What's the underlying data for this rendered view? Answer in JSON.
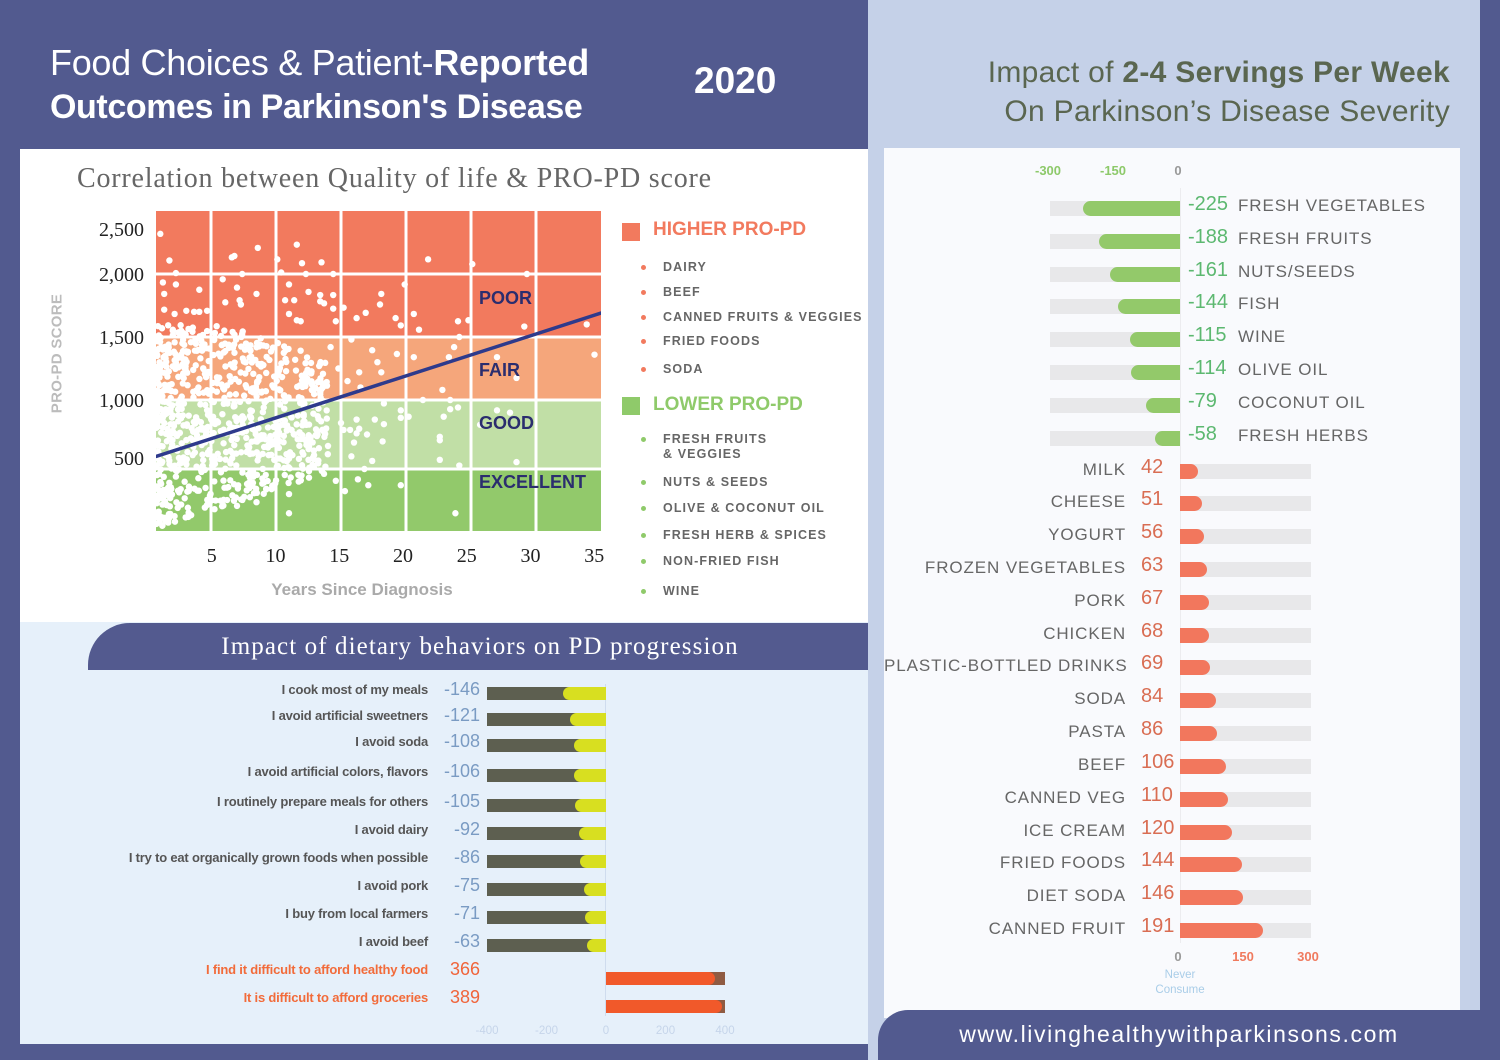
{
  "header": {
    "title_light": "Food Choices & Patient-",
    "title_bold": "Reported",
    "title_line2": "Outcomes in Parkinson's Disease",
    "year": "2020"
  },
  "right_header": {
    "line1_light": "Impact of ",
    "line1_bold": "2-4 Servings Per Week",
    "line2": "On Parkinson’s Disease Severity"
  },
  "colors": {
    "brand_purple": "#525a8f",
    "poor": "#f27a5e",
    "fair": "#f5a67b",
    "good": "#c1dfa6",
    "excellent": "#92c96b",
    "trendline": "#2e3a8c",
    "higher": "#f27a5e",
    "lower": "#8fca6a",
    "diet_negative_track": "#5d5f50",
    "diet_negative_fill": "#d8df20",
    "diet_positive_track": "#8f5b42",
    "diet_positive_fill": "#f1592a",
    "serv_negative_fill": "#93c96a",
    "serv_positive_fill": "#f2775d",
    "serv_track": "#e8e8ea"
  },
  "correlation_legend": {
    "higher": {
      "title": "HIGHER PRO-PD",
      "items": [
        "DAIRY",
        "BEEF",
        "CANNED FRUITS & VEGGIES",
        "FRIED FOODS",
        "SODA"
      ]
    },
    "lower": {
      "title": "LOWER PRO-PD",
      "items": [
        "FRESH FRUITS\n& VEGGIES",
        "NUTS & SEEDS",
        "OLIVE & COCONUT OIL",
        "FRESH HERB & SPICES",
        "NON-FRIED FISH",
        "WINE"
      ]
    }
  },
  "chart_data": [
    {
      "type": "scatter",
      "title": "Correlation between Quality of life & PRO-PD score",
      "xlabel": "Years Since Diagnosis",
      "ylabel": "PRO-PD SCORE",
      "xlim": [
        0.8,
        35.5
      ],
      "ylim": [
        0,
        2750
      ],
      "xticks": [
        {
          "value": 5,
          "label": "5"
        },
        {
          "value": 10,
          "label": "10"
        },
        {
          "value": 15,
          "label": "15"
        },
        {
          "value": 20,
          "label": "20"
        },
        {
          "value": 25,
          "label": "25"
        },
        {
          "value": 30,
          "label": "30"
        },
        {
          "value": 35,
          "label": "35"
        }
      ],
      "yticks": [
        {
          "value": 500,
          "label": "500"
        },
        {
          "value": 1000,
          "label": "1,000"
        },
        {
          "value": 1500,
          "label": "1,500"
        },
        {
          "value": 2000,
          "label": "2,000"
        },
        {
          "value": 2500,
          "label": "2,500"
        }
      ],
      "grid": true,
      "xgrid": [
        5,
        10,
        15,
        20,
        25,
        30
      ],
      "ygrid": [
        400,
        1000,
        1500,
        2000
      ],
      "bands": [
        {
          "name": "POOR",
          "from": 1500,
          "to": 2750,
          "color": "#f27a5e"
        },
        {
          "name": "FAIR",
          "from": 1000,
          "to": 1500,
          "color": "#f5a67b"
        },
        {
          "name": "GOOD",
          "from": 400,
          "to": 1000,
          "color": "#c1dfa6"
        },
        {
          "name": "EXCELLENT",
          "from": 0,
          "to": 400,
          "color": "#92c96b"
        }
      ],
      "trendline": {
        "x": [
          0.8,
          35.0
        ],
        "y": [
          510,
          1690
        ]
      },
      "dense_cluster": {
        "count": 850,
        "x_range": [
          0.8,
          14
        ],
        "y_range": [
          0,
          1600
        ]
      },
      "points": [
        [
          1.1,
          2446
        ],
        [
          1.8,
          2150
        ],
        [
          2.3,
          2010
        ],
        [
          8.6,
          2290
        ],
        [
          11.6,
          2326
        ],
        [
          6.6,
          2185
        ],
        [
          6.8,
          2200
        ],
        [
          10.1,
          2163
        ],
        [
          12.0,
          2120
        ],
        [
          13.5,
          2130
        ],
        [
          21.7,
          2163
        ],
        [
          25.1,
          2110
        ],
        [
          1.3,
          1933
        ],
        [
          2.3,
          1917
        ],
        [
          4.1,
          1875
        ],
        [
          5.9,
          1958
        ],
        [
          7.4,
          2000
        ],
        [
          10.4,
          2017
        ],
        [
          12.3,
          2000
        ],
        [
          14.4,
          2000
        ],
        [
          7.0,
          1892
        ],
        [
          8.5,
          1842
        ],
        [
          11.0,
          1917
        ],
        [
          12.5,
          1858
        ],
        [
          13.4,
          1833
        ],
        [
          14.4,
          1833
        ],
        [
          18.1,
          1842
        ],
        [
          19.9,
          1917
        ],
        [
          29.3,
          2000
        ],
        [
          1.4,
          1842
        ],
        [
          1.4,
          1717
        ],
        [
          2.2,
          1683
        ],
        [
          3.1,
          1708
        ],
        [
          3.7,
          1700
        ],
        [
          4.1,
          1700
        ],
        [
          4.7,
          1708
        ],
        [
          6.1,
          1775
        ],
        [
          7.2,
          1792
        ],
        [
          7.3,
          1758
        ],
        [
          10.7,
          1792
        ],
        [
          11.4,
          1792
        ],
        [
          13.4,
          1783
        ],
        [
          13.7,
          1767
        ],
        [
          14.4,
          1725
        ],
        [
          11.0,
          1683
        ],
        [
          11.6,
          1633
        ],
        [
          11.9,
          1625
        ],
        [
          14.6,
          1625
        ],
        [
          15.2,
          1733
        ],
        [
          16.2,
          1650
        ],
        [
          16.9,
          1692
        ],
        [
          18.0,
          1758
        ],
        [
          19.2,
          1650
        ],
        [
          19.6,
          1592
        ],
        [
          20.6,
          1683
        ],
        [
          21.0,
          1558
        ],
        [
          24.0,
          1625
        ],
        [
          24.8,
          1633
        ],
        [
          29.1,
          1583
        ],
        [
          33.9,
          1600
        ],
        [
          24.1,
          1500
        ],
        [
          34.5,
          1360
        ],
        [
          28.5,
          1175
        ],
        [
          27.0,
          1340
        ],
        [
          23.7,
          1420
        ],
        [
          23.3,
          1340
        ],
        [
          20.6,
          1340
        ],
        [
          19.3,
          1365
        ],
        [
          18.1,
          1220
        ],
        [
          17.4,
          1395
        ],
        [
          16.4,
          1220
        ],
        [
          22.8,
          1080
        ],
        [
          23.4,
          1000
        ],
        [
          21.3,
          1000
        ],
        [
          24.0,
          935
        ],
        [
          23.4,
          920
        ],
        [
          22.9,
          855
        ],
        [
          27.0,
          910
        ],
        [
          28.0,
          890
        ],
        [
          25.7,
          785
        ],
        [
          22.6,
          680
        ],
        [
          22.6,
          650
        ],
        [
          22.6,
          480
        ],
        [
          24.1,
          430
        ],
        [
          28.5,
          460
        ],
        [
          23.8,
          100
        ],
        [
          19.6,
          910
        ],
        [
          19.6,
          845
        ],
        [
          20.2,
          855
        ],
        [
          18.3,
          790
        ],
        [
          17.6,
          830
        ],
        [
          18.2,
          640
        ],
        [
          17.4,
          470
        ],
        [
          17.0,
          700
        ],
        [
          16.2,
          710
        ],
        [
          16.0,
          630
        ],
        [
          15.8,
          510
        ],
        [
          16.3,
          330
        ],
        [
          17.1,
          290
        ],
        [
          19.6,
          290
        ],
        [
          14.6,
          320
        ],
        [
          15.3,
          250
        ],
        [
          16.8,
          400
        ],
        [
          11.0,
          230
        ],
        [
          11.0,
          100
        ],
        [
          8.5,
          175
        ],
        [
          7.0,
          150
        ],
        [
          15.0,
          800
        ],
        [
          15.2,
          740
        ],
        [
          15.7,
          740
        ],
        [
          16.2,
          830
        ],
        [
          16.4,
          750
        ],
        [
          18.3,
          970
        ],
        [
          14.8,
          1250
        ],
        [
          15.5,
          1150
        ],
        [
          16.5,
          1100
        ],
        [
          17.8,
          1300
        ],
        [
          14.2,
          1420
        ],
        [
          15.8,
          1480
        ],
        [
          13.6,
          1100
        ],
        [
          12.8,
          950
        ],
        [
          13.2,
          700
        ],
        [
          14.0,
          600
        ],
        [
          12.5,
          480
        ],
        [
          13.8,
          420
        ]
      ]
    },
    {
      "type": "bar",
      "orientation": "horizontal",
      "title": "Impact of dietary behaviors on PD progression",
      "categories": [
        "I cook most of my meals",
        "I avoid artificial sweetners",
        "I avoid soda",
        "I avoid artificial colors, flavors",
        "I routinely prepare meals for others",
        "I avoid dairy",
        "I try to eat organically grown foods when possible",
        "I avoid pork",
        "I buy from local farmers",
        "I avoid beef",
        "I find it difficult to afford healthy food",
        "It is difficult to afford groceries"
      ],
      "values": [
        -146,
        -121,
        -108,
        -106,
        -105,
        -92,
        -86,
        -75,
        -71,
        -63,
        366,
        389
      ],
      "value_labels": [
        "-146",
        "-121",
        "-108",
        "-106",
        "-105",
        "-92",
        "-86",
        "-75",
        "-71",
        "-63",
        "366",
        "389"
      ],
      "xlim": [
        -400,
        400
      ],
      "xticks": [
        {
          "value": -400,
          "label": "-400"
        },
        {
          "value": -200,
          "label": "-200"
        },
        {
          "value": 0,
          "label": "0"
        },
        {
          "value": 200,
          "label": "200"
        },
        {
          "value": 400,
          "label": "400"
        }
      ]
    },
    {
      "type": "bar",
      "orientation": "horizontal",
      "title": "Impact of 2-4 Servings Per Week On Parkinson’s Disease Severity",
      "categories": [
        "FRESH VEGETABLES",
        "FRESH FRUITS",
        "NUTS/SEEDS",
        "FISH",
        "WINE",
        "OLIVE OIL",
        "COCONUT OIL",
        "FRESH HERBS",
        "MILK",
        "CHEESE",
        "YOGURT",
        "FROZEN VEGETABLES",
        "PORK",
        "CHICKEN",
        "PLASTIC-BOTTLED DRINKS",
        "SODA",
        "PASTA",
        "BEEF",
        "CANNED VEG",
        "ICE CREAM",
        "FRIED FOODS",
        "DIET SODA",
        "CANNED FRUIT"
      ],
      "values": [
        -225,
        -188,
        -161,
        -144,
        -115,
        -114,
        -79,
        -58,
        42,
        51,
        56,
        63,
        67,
        68,
        69,
        84,
        86,
        106,
        110,
        120,
        144,
        146,
        191
      ],
      "value_labels": [
        "-225",
        "-188",
        "-161",
        "-144",
        "-115",
        "-114",
        "-79",
        "-58",
        "42",
        "51",
        "56",
        "63",
        "67",
        "68",
        "69",
        "84",
        "86",
        "106",
        "110",
        "120",
        "144",
        "146",
        "191"
      ],
      "xlim": [
        -300,
        300
      ],
      "top_ticks": [
        {
          "value": -300,
          "label": "-300"
        },
        {
          "value": -150,
          "label": "-150"
        },
        {
          "value": 0,
          "label": "0"
        }
      ],
      "bottom_ticks": [
        {
          "value": 0,
          "label": "0"
        },
        {
          "value": 150,
          "label": "150"
        },
        {
          "value": 300,
          "label": "300"
        }
      ],
      "zero_caption_line1": "Never",
      "zero_caption_line2": "Consume"
    }
  ],
  "footer": {
    "url": "www.livinghealthywithparkinsons.com"
  }
}
